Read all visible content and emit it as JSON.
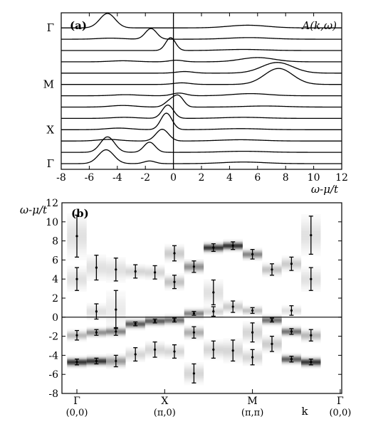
{
  "chart_data": [
    {
      "panel": "(a)",
      "type": "line",
      "annotation": "A(k,ω)",
      "xlabel": "ω-μ/t",
      "xlim": [
        -8,
        12
      ],
      "x_ticks": [
        "-8",
        "-6",
        "-4",
        "-2",
        "0",
        "2",
        "4",
        "6",
        "8",
        "10",
        "12"
      ],
      "k_labels": [
        "Γ",
        "M",
        "X",
        "Γ"
      ],
      "k_label_curve_index": [
        12,
        7,
        3,
        0
      ],
      "vertical_line_at": 0,
      "curves": [
        {
          "k_index": 0,
          "peaks": [
            {
              "w": -4.8,
              "h": 1.3,
              "s": 0.55
            },
            {
              "w": -1.7,
              "h": 0.25,
              "s": 0.4
            },
            {
              "w": 5.0,
              "h": 0.15,
              "s": 1.5
            }
          ]
        },
        {
          "k_index": 1,
          "peaks": [
            {
              "w": -4.7,
              "h": 1.45,
              "s": 0.5
            },
            {
              "w": -1.7,
              "h": 0.95,
              "s": 0.4
            },
            {
              "w": 5.0,
              "h": 0.1,
              "s": 1.5
            }
          ]
        },
        {
          "k_index": 2,
          "peaks": [
            {
              "w": -4.6,
              "h": 0.15,
              "s": 0.8
            },
            {
              "w": -0.8,
              "h": 1.1,
              "s": 0.45
            },
            {
              "w": 4.8,
              "h": 0.12,
              "s": 1.5
            }
          ]
        },
        {
          "k_index": 3,
          "peaks": [
            {
              "w": -3.9,
              "h": 0.15,
              "s": 0.9
            },
            {
              "w": -0.5,
              "h": 1.55,
              "s": 0.4
            },
            {
              "w": 4.8,
              "h": 0.1,
              "s": 1.5
            }
          ]
        },
        {
          "k_index": 4,
          "peaks": [
            {
              "w": -3.5,
              "h": 0.1,
              "s": 0.9
            },
            {
              "w": -0.4,
              "h": 1.25,
              "s": 0.4
            },
            {
              "w": 5.0,
              "h": 0.1,
              "s": 1.5
            }
          ]
        },
        {
          "k_index": 5,
          "peaks": [
            {
              "w": -3.6,
              "h": 0.15,
              "s": 0.9
            },
            {
              "w": -0.2,
              "h": 0.6,
              "s": 0.4
            },
            {
              "w": 0.4,
              "h": 0.9,
              "s": 0.35
            },
            {
              "w": 6.5,
              "h": 0.1,
              "s": 1.5
            }
          ]
        },
        {
          "k_index": 6,
          "peaks": [
            {
              "w": -3.4,
              "h": 0.1,
              "s": 0.9
            },
            {
              "w": 0.4,
              "h": 0.25,
              "s": 0.5
            },
            {
              "w": 5.5,
              "h": 0.2,
              "s": 1.3
            }
          ]
        },
        {
          "k_index": 7,
          "peaks": [
            {
              "w": 0.6,
              "h": 0.15,
              "s": 0.6
            },
            {
              "w": 7.5,
              "h": 1.5,
              "s": 1.0
            }
          ]
        },
        {
          "k_index": 8,
          "peaks": [
            {
              "w": 0.8,
              "h": 0.15,
              "s": 0.6
            },
            {
              "w": 7.4,
              "h": 1.0,
              "s": 1.1
            }
          ]
        },
        {
          "k_index": 9,
          "peaks": [
            {
              "w": -3.6,
              "h": 0.1,
              "s": 0.9
            },
            {
              "w": 0.2,
              "h": 0.15,
              "s": 0.5
            },
            {
              "w": 6.0,
              "h": 0.4,
              "s": 1.2
            }
          ]
        },
        {
          "k_index": 10,
          "peaks": [
            {
              "w": -0.2,
              "h": 1.2,
              "s": 0.35
            },
            {
              "w": 5.0,
              "h": 0.1,
              "s": 1.5
            }
          ]
        },
        {
          "k_index": 11,
          "peaks": [
            {
              "w": -4.5,
              "h": 0.1,
              "s": 0.9
            },
            {
              "w": -1.6,
              "h": 1.0,
              "s": 0.4
            },
            {
              "w": 5.4,
              "h": 0.15,
              "s": 1.5
            }
          ]
        },
        {
          "k_index": 12,
          "peaks": [
            {
              "w": -4.7,
              "h": 1.35,
              "s": 0.55
            },
            {
              "w": 5.3,
              "h": 0.25,
              "s": 1.4
            }
          ]
        }
      ]
    },
    {
      "panel": "(b)",
      "type": "scatter",
      "ylabel": "ω-μ/t",
      "xlabel": "k",
      "ylim": [
        -8,
        12
      ],
      "y_ticks": [
        "-8",
        "-6",
        "-4",
        "-2",
        "0",
        "2",
        "4",
        "6",
        "8",
        "10",
        "12"
      ],
      "k_points": [
        {
          "name": "Γ",
          "coord": "(0,0)",
          "col": 0
        },
        {
          "name": "X",
          "coord": "(π,0)",
          "col": 4.5
        },
        {
          "name": "M",
          "coord": "(π,π)",
          "col": 9
        },
        {
          "name": "Γ",
          "coord": "(0,0)",
          "col": 13.5
        }
      ],
      "x_extra_label": "k",
      "horizontal_line_at": 0,
      "columns": 14,
      "peaks": [
        {
          "col": 0,
          "y": -4.7,
          "err": 0.3,
          "w": 1.0
        },
        {
          "col": 0,
          "y": -1.9,
          "err": 0.5,
          "w": 0.35
        },
        {
          "col": 0,
          "y": 4.0,
          "err": 1.2,
          "w": 0.15
        },
        {
          "col": 0,
          "y": 8.5,
          "err": 2.2,
          "w": 0.15
        },
        {
          "col": 1,
          "y": -4.6,
          "err": 0.3,
          "w": 1.0
        },
        {
          "col": 1,
          "y": -1.6,
          "err": 0.3,
          "w": 0.55
        },
        {
          "col": 1,
          "y": 0.6,
          "err": 0.8,
          "w": 0.15
        },
        {
          "col": 1,
          "y": 5.2,
          "err": 1.3,
          "w": 0.15
        },
        {
          "col": 2,
          "y": -4.6,
          "err": 0.6,
          "w": 0.5
        },
        {
          "col": 2,
          "y": -1.5,
          "err": 0.4,
          "w": 0.6
        },
        {
          "col": 2,
          "y": 0.8,
          "err": 2.0,
          "w": 0.1
        },
        {
          "col": 2,
          "y": 5.0,
          "err": 1.2,
          "w": 0.15
        },
        {
          "col": 3,
          "y": -3.9,
          "err": 0.7,
          "w": 0.2
        },
        {
          "col": 3,
          "y": -0.7,
          "err": 0.2,
          "w": 0.8
        },
        {
          "col": 3,
          "y": 4.8,
          "err": 0.7,
          "w": 0.2
        },
        {
          "col": 4,
          "y": -3.4,
          "err": 0.8,
          "w": 0.2
        },
        {
          "col": 4,
          "y": -0.4,
          "err": 0.2,
          "w": 0.8
        },
        {
          "col": 4,
          "y": 4.7,
          "err": 0.7,
          "w": 0.2
        },
        {
          "col": 5,
          "y": -3.6,
          "err": 0.7,
          "w": 0.2
        },
        {
          "col": 5,
          "y": -0.3,
          "err": 0.2,
          "w": 0.7
        },
        {
          "col": 5,
          "y": 3.7,
          "err": 0.7,
          "w": 0.3
        },
        {
          "col": 5,
          "y": 6.7,
          "err": 0.8,
          "w": 0.25
        },
        {
          "col": 6,
          "y": -5.9,
          "err": 1.0,
          "w": 0.2
        },
        {
          "col": 6,
          "y": -1.6,
          "err": 0.6,
          "w": 0.4
        },
        {
          "col": 6,
          "y": 0.4,
          "err": 0.2,
          "w": 0.6
        },
        {
          "col": 6,
          "y": 5.3,
          "err": 0.6,
          "w": 0.55
        },
        {
          "col": 7,
          "y": -3.4,
          "err": 0.9,
          "w": 0.2
        },
        {
          "col": 7,
          "y": 0.6,
          "err": 0.5,
          "w": 0.2
        },
        {
          "col": 7,
          "y": 2.6,
          "err": 1.3,
          "w": 0.15
        },
        {
          "col": 7,
          "y": 7.3,
          "err": 0.4,
          "w": 1.0
        },
        {
          "col": 8,
          "y": -3.5,
          "err": 1.1,
          "w": 0.2
        },
        {
          "col": 8,
          "y": 1.1,
          "err": 0.6,
          "w": 0.25
        },
        {
          "col": 8,
          "y": 7.5,
          "err": 0.4,
          "w": 1.0
        },
        {
          "col": 9,
          "y": -4.2,
          "err": 0.8,
          "w": 0.2
        },
        {
          "col": 9,
          "y": -1.6,
          "err": 1.0,
          "w": 0.2
        },
        {
          "col": 9,
          "y": 0.7,
          "err": 0.3,
          "w": 0.3
        },
        {
          "col": 9,
          "y": 6.6,
          "err": 0.5,
          "w": 0.6
        },
        {
          "col": 10,
          "y": -2.8,
          "err": 0.8,
          "w": 0.25
        },
        {
          "col": 10,
          "y": -0.3,
          "err": 0.2,
          "w": 0.7
        },
        {
          "col": 10,
          "y": 5.0,
          "err": 0.6,
          "w": 0.3
        },
        {
          "col": 11,
          "y": -4.4,
          "err": 0.3,
          "w": 0.8
        },
        {
          "col": 11,
          "y": -1.5,
          "err": 0.3,
          "w": 0.7
        },
        {
          "col": 11,
          "y": 0.7,
          "err": 0.5,
          "w": 0.15
        },
        {
          "col": 11,
          "y": 5.6,
          "err": 0.7,
          "w": 0.25
        },
        {
          "col": 12,
          "y": -4.7,
          "err": 0.3,
          "w": 1.0
        },
        {
          "col": 12,
          "y": -1.9,
          "err": 0.6,
          "w": 0.35
        },
        {
          "col": 12,
          "y": 4.0,
          "err": 1.2,
          "w": 0.15
        },
        {
          "col": 12,
          "y": 8.6,
          "err": 2.0,
          "w": 0.15
        }
      ]
    }
  ]
}
